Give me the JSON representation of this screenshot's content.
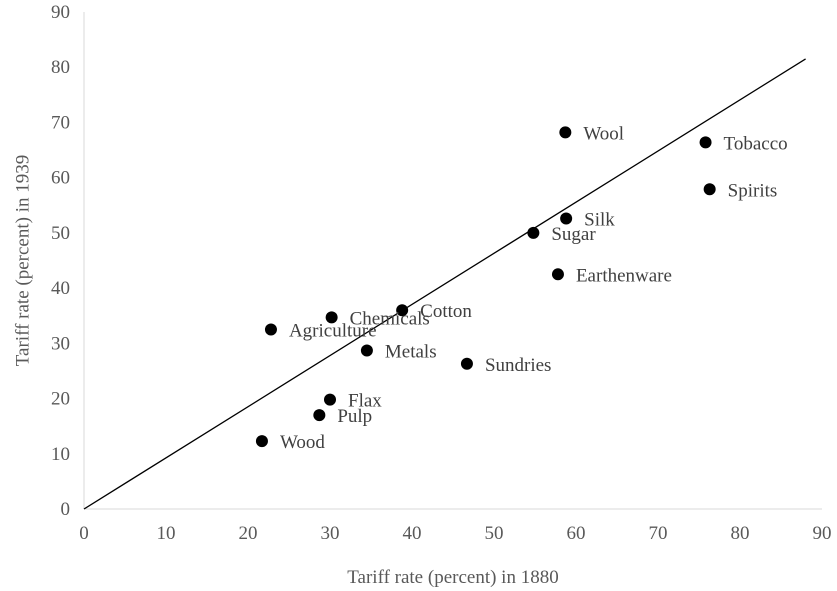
{
  "chart_data": {
    "type": "scatter",
    "title": "",
    "xlabel": "Tariff rate (percent) in 1880",
    "ylabel": "Tariff rate (percent) in 1939",
    "xlim": [
      0,
      90
    ],
    "ylim": [
      0,
      90
    ],
    "x_ticks": [
      "0",
      "10",
      "20",
      "30",
      "40",
      "50",
      "60",
      "70",
      "80",
      "90"
    ],
    "y_ticks": [
      "0",
      "10",
      "20",
      "30",
      "40",
      "50",
      "60",
      "70",
      "80",
      "90"
    ],
    "grid": false,
    "legend": "none",
    "marker_color": "#000000",
    "reference_line": {
      "from": [
        0,
        0
      ],
      "to": [
        88,
        81.5
      ],
      "color": "#000000"
    },
    "points": [
      {
        "label": "Wool",
        "x": 58.7,
        "y": 68.2
      },
      {
        "label": "Tobacco",
        "x": 75.8,
        "y": 66.4
      },
      {
        "label": "Spirits",
        "x": 76.3,
        "y": 57.9
      },
      {
        "label": "Silk",
        "x": 58.8,
        "y": 52.6
      },
      {
        "label": "Sugar",
        "x": 54.8,
        "y": 50.0
      },
      {
        "label": "Earthenware",
        "x": 57.8,
        "y": 42.5
      },
      {
        "label": "Cotton",
        "x": 38.8,
        "y": 36.0
      },
      {
        "label": "Chemicals",
        "x": 30.2,
        "y": 34.7
      },
      {
        "label": "Agriculture",
        "x": 22.8,
        "y": 32.5
      },
      {
        "label": "Metals",
        "x": 34.5,
        "y": 28.7
      },
      {
        "label": "Sundries",
        "x": 46.7,
        "y": 26.3
      },
      {
        "label": "Flax",
        "x": 30.0,
        "y": 19.8
      },
      {
        "label": "Pulp",
        "x": 28.7,
        "y": 17.0
      },
      {
        "label": "Wood",
        "x": 21.7,
        "y": 12.3
      }
    ]
  }
}
